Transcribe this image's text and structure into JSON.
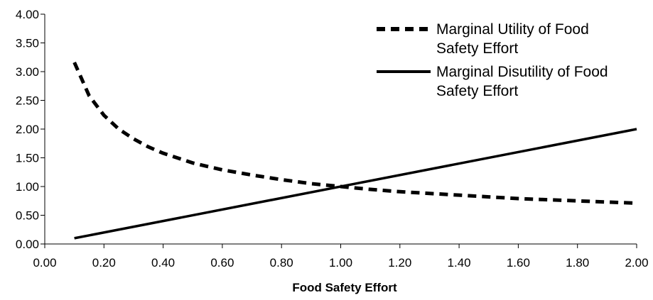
{
  "chart_data": {
    "type": "line",
    "title": "",
    "xlabel": "Food Safety Effort",
    "ylabel": "",
    "xlim": [
      0,
      2
    ],
    "ylim": [
      0,
      4
    ],
    "x_ticks": [
      "0.00",
      "0.20",
      "0.40",
      "0.60",
      "0.80",
      "1.00",
      "1.20",
      "1.40",
      "1.60",
      "1.80",
      "2.00"
    ],
    "y_ticks": [
      "0.00",
      "0.50",
      "1.00",
      "1.50",
      "2.00",
      "2.50",
      "3.00",
      "3.50",
      "4.00"
    ],
    "grid": false,
    "legend_position": "top-right",
    "series": [
      {
        "name": "Marginal Utility of Food Safety Effort",
        "style": "dashed",
        "color": "#000000",
        "x": [
          0.1,
          0.15,
          0.2,
          0.25,
          0.3,
          0.35,
          0.4,
          0.5,
          0.6,
          0.7,
          0.8,
          0.9,
          1.0,
          1.1,
          1.2,
          1.3,
          1.4,
          1.5,
          1.6,
          1.7,
          1.8,
          1.9,
          2.0
        ],
        "y": [
          3.16,
          2.58,
          2.24,
          2.0,
          1.83,
          1.69,
          1.58,
          1.41,
          1.29,
          1.2,
          1.12,
          1.05,
          1.0,
          0.95,
          0.91,
          0.88,
          0.85,
          0.82,
          0.79,
          0.77,
          0.75,
          0.73,
          0.71
        ]
      },
      {
        "name": "Marginal Disutility of Food Safety Effort",
        "style": "solid",
        "color": "#000000",
        "x": [
          0.1,
          2.0
        ],
        "y": [
          0.1,
          2.0
        ]
      }
    ]
  },
  "legend": {
    "entries": [
      {
        "line1": "Marginal Utility of Food",
        "line2": "Safety Effort"
      },
      {
        "line1": "Marginal Disutility of Food",
        "line2": "Safety Effort"
      }
    ]
  }
}
